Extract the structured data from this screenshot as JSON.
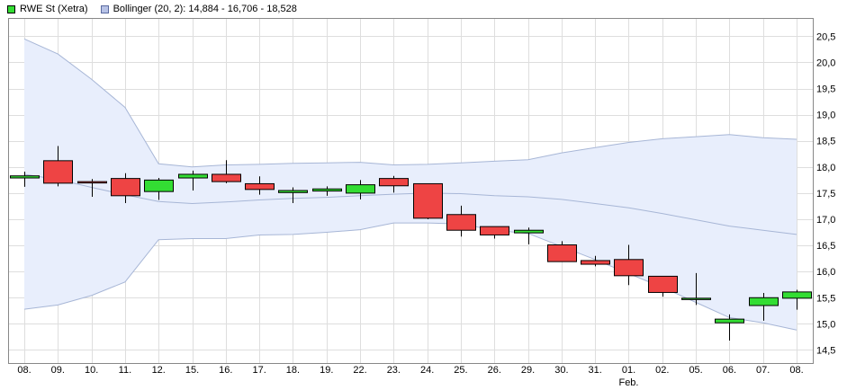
{
  "legend": {
    "items": [
      {
        "label": "RWE St (Xetra)",
        "color": "#33dd33",
        "border": "#000000"
      },
      {
        "label": "Bollinger (20, 2): 14,884 - 16,706 - 18,528",
        "color": "#b7c2e6",
        "border": "#5a6aa0"
      }
    ]
  },
  "chart_data": {
    "type": "candlestick",
    "title": "",
    "xlabel": "",
    "ylabel": "",
    "ylim": [
      14.25,
      20.85
    ],
    "y_ticks": [
      "20,5",
      "20,0",
      "19,5",
      "19,0",
      "18,5",
      "18,0",
      "17,5",
      "17,0",
      "16,5",
      "16,0",
      "15,5",
      "15,0",
      "14,5"
    ],
    "y_tick_values": [
      20.5,
      20.0,
      19.5,
      19.0,
      18.5,
      18.0,
      17.5,
      17.0,
      16.5,
      16.0,
      15.5,
      15.0,
      14.5
    ],
    "categories": [
      "08.",
      "09.",
      "10.",
      "11.",
      "12.",
      "15.",
      "16.",
      "17.",
      "18.",
      "19.",
      "22.",
      "23.",
      "24.",
      "25.",
      "26.",
      "29.",
      "30.",
      "31.",
      "01.",
      "02.",
      "05.",
      "06.",
      "07.",
      "08."
    ],
    "month_labels": [
      {
        "index": 18,
        "label": "Feb."
      }
    ],
    "candles": [
      {
        "o": 17.79,
        "h": 17.91,
        "l": 17.62,
        "c": 17.83
      },
      {
        "o": 18.12,
        "h": 18.4,
        "l": 17.63,
        "c": 17.69
      },
      {
        "o": 17.72,
        "h": 17.77,
        "l": 17.43,
        "c": 17.7
      },
      {
        "o": 17.78,
        "h": 17.88,
        "l": 17.31,
        "c": 17.45
      },
      {
        "o": 17.53,
        "h": 17.79,
        "l": 17.37,
        "c": 17.75
      },
      {
        "o": 17.79,
        "h": 17.93,
        "l": 17.55,
        "c": 17.86
      },
      {
        "o": 17.86,
        "h": 18.13,
        "l": 17.69,
        "c": 17.72
      },
      {
        "o": 17.68,
        "h": 17.82,
        "l": 17.47,
        "c": 17.57
      },
      {
        "o": 17.51,
        "h": 17.61,
        "l": 17.31,
        "c": 17.55
      },
      {
        "o": 17.54,
        "h": 17.63,
        "l": 17.45,
        "c": 17.58
      },
      {
        "o": 17.5,
        "h": 17.75,
        "l": 17.38,
        "c": 17.66
      },
      {
        "o": 17.78,
        "h": 17.83,
        "l": 17.51,
        "c": 17.64
      },
      {
        "o": 17.68,
        "h": 17.68,
        "l": 17.0,
        "c": 17.02
      },
      {
        "o": 17.09,
        "h": 17.26,
        "l": 16.67,
        "c": 16.79
      },
      {
        "o": 16.86,
        "h": 16.86,
        "l": 16.63,
        "c": 16.7
      },
      {
        "o": 16.74,
        "h": 16.84,
        "l": 16.52,
        "c": 16.79
      },
      {
        "o": 16.51,
        "h": 16.58,
        "l": 16.19,
        "c": 16.19
      },
      {
        "o": 16.21,
        "h": 16.3,
        "l": 16.1,
        "c": 16.14
      },
      {
        "o": 16.23,
        "h": 16.51,
        "l": 15.74,
        "c": 15.92
      },
      {
        "o": 15.91,
        "h": 15.91,
        "l": 15.52,
        "c": 15.6
      },
      {
        "o": 15.49,
        "h": 15.97,
        "l": 15.36,
        "c": 15.49
      },
      {
        "o": 15.02,
        "h": 15.18,
        "l": 14.68,
        "c": 15.09
      },
      {
        "o": 15.35,
        "h": 15.59,
        "l": 15.06,
        "c": 15.5
      },
      {
        "o": 15.49,
        "h": 15.65,
        "l": 15.27,
        "c": 15.61
      }
    ],
    "series": [
      {
        "name": "Bollinger (20, 2)",
        "upper": [
          20.45,
          20.16,
          19.68,
          19.14,
          18.06,
          18.0,
          18.04,
          18.05,
          18.07,
          18.08,
          18.09,
          18.04,
          18.05,
          18.08,
          18.11,
          18.14,
          18.27,
          18.37,
          18.47,
          18.54,
          18.58,
          18.62,
          18.56,
          18.53
        ],
        "middle": [
          17.86,
          17.76,
          17.61,
          17.47,
          17.34,
          17.3,
          17.33,
          17.37,
          17.4,
          17.42,
          17.45,
          17.48,
          17.5,
          17.49,
          17.45,
          17.43,
          17.38,
          17.3,
          17.22,
          17.11,
          16.99,
          16.87,
          16.79,
          16.71
        ],
        "lower": [
          15.28,
          15.36,
          15.54,
          15.8,
          16.61,
          16.63,
          16.63,
          16.7,
          16.71,
          16.75,
          16.8,
          16.93,
          16.93,
          16.91,
          16.79,
          16.73,
          16.48,
          16.23,
          15.96,
          15.7,
          15.41,
          15.12,
          15.02,
          14.88
        ]
      }
    ],
    "colors": {
      "up": "#33dd33",
      "down": "#ee4444",
      "band_fill": "#e8eefc",
      "band_line": "#a7b6d6",
      "grid": "#dedede"
    },
    "grid": true,
    "y_axis_position": "right"
  }
}
